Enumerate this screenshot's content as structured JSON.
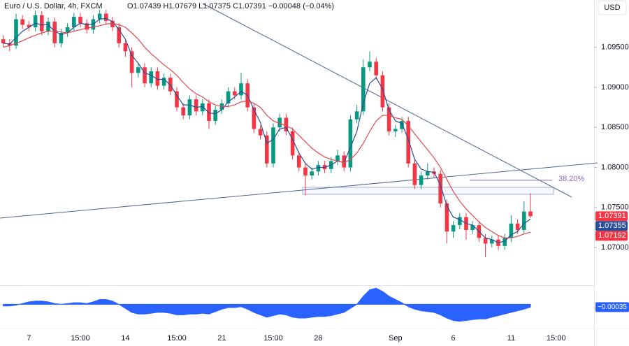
{
  "chart_data": {
    "type": "candlestick",
    "title": "Euro / U.S. Dollar, 4h, FXCM",
    "ohlc_header": "O1.07439 H1.07679 L1.07375 C1.07391 −0.00048 (−0.04%)",
    "currency": "USD",
    "categories": [
      null,
      null,
      null,
      null,
      "7",
      null,
      null,
      null,
      null,
      null,
      null,
      null,
      "15:00",
      null,
      null,
      null,
      null,
      null,
      null,
      "14",
      null,
      null,
      null,
      null,
      null,
      null,
      null,
      "15:00",
      null,
      null,
      null,
      null,
      null,
      null,
      "21",
      null,
      null,
      null,
      null,
      null,
      null,
      null,
      "15:00",
      null,
      null,
      null,
      null,
      null,
      null,
      "28",
      null,
      null,
      null,
      null,
      null,
      null,
      null,
      null,
      null,
      null,
      null,
      "Sep",
      null,
      null,
      null,
      null,
      null,
      null,
      null,
      null,
      "6",
      null,
      null,
      null,
      null,
      null,
      null,
      null,
      null,
      "11",
      null,
      null,
      null,
      null,
      null,
      null,
      "15:00",
      null,
      null,
      null,
      null,
      null
    ],
    "open": [
      1.096,
      1.0955,
      1.0952,
      1.0985,
      1.0978,
      1.0975,
      1.099,
      1.097,
      1.0982,
      1.0955,
      1.0968,
      1.0975,
      1.0988,
      1.098,
      1.0972,
      1.0985,
      1.0992,
      1.0983,
      1.0975,
      1.0955,
      1.0945,
      1.0918,
      1.0925,
      1.0905,
      1.092,
      1.0902,
      1.0912,
      1.0895,
      1.0875,
      1.0865,
      1.0885,
      1.087,
      1.088,
      1.0858,
      1.0872,
      1.088,
      1.0895,
      1.089,
      1.0905,
      1.0875,
      1.0848,
      1.084,
      1.0805,
      1.085,
      1.0862,
      1.0845,
      1.0815,
      1.08,
      1.079,
      1.0795,
      1.0803,
      1.0798,
      1.0808,
      1.0815,
      1.08,
      1.086,
      1.087,
      1.0925,
      1.0932,
      1.0915,
      1.0875,
      1.0845,
      1.0848,
      1.0858,
      1.0805,
      1.0778,
      1.079,
      1.0795,
      1.0792,
      1.0755,
      1.072,
      1.0728,
      1.0738,
      1.0722,
      1.0728,
      1.0712,
      1.0705,
      1.071,
      1.0702,
      1.0712,
      1.073,
      1.0722,
      1.0745,
      null,
      null,
      null,
      null,
      null,
      null,
      null,
      null,
      null
    ],
    "high": [
      1.0965,
      1.096,
      1.0992,
      1.099,
      1.0983,
      1.0996,
      1.0995,
      1.0987,
      1.0987,
      1.0973,
      1.098,
      1.0993,
      1.0993,
      1.0985,
      1.099,
      1.0997,
      1.0997,
      1.0988,
      1.098,
      1.096,
      1.095,
      1.093,
      1.093,
      1.0925,
      1.0925,
      1.0917,
      1.0917,
      1.09,
      1.088,
      1.089,
      1.089,
      1.0885,
      1.0885,
      1.0877,
      1.0885,
      1.09,
      1.09,
      1.0918,
      1.091,
      1.088,
      1.0853,
      1.0845,
      1.0855,
      1.0867,
      1.0867,
      1.085,
      1.082,
      1.0805,
      1.08,
      1.0808,
      1.0808,
      1.0813,
      1.0822,
      1.082,
      1.0865,
      1.0878,
      1.0935,
      1.0945,
      1.0937,
      1.092,
      1.088,
      1.0853,
      1.0863,
      1.0863,
      1.081,
      1.0795,
      1.0805,
      1.08,
      1.0797,
      1.076,
      1.0733,
      1.0743,
      1.0743,
      1.0733,
      1.0733,
      1.0717,
      1.0715,
      1.0715,
      1.0717,
      1.074,
      1.0735,
      1.0758,
      1.0768,
      null,
      null,
      null,
      null,
      null,
      null,
      null,
      null,
      null
    ],
    "low": [
      1.095,
      1.0945,
      1.0948,
      1.0973,
      1.097,
      1.097,
      1.0965,
      1.0965,
      1.095,
      1.095,
      1.0963,
      1.097,
      1.0975,
      1.0967,
      1.0967,
      1.098,
      1.0978,
      1.097,
      1.095,
      1.0938,
      1.09,
      1.0912,
      1.09,
      1.09,
      1.0897,
      1.0897,
      1.089,
      1.087,
      1.086,
      1.086,
      1.0865,
      1.0865,
      1.0848,
      1.0853,
      1.0867,
      1.0875,
      1.0885,
      1.0885,
      1.087,
      1.0843,
      1.0835,
      1.08,
      1.08,
      1.0845,
      1.084,
      1.081,
      1.0795,
      1.0765,
      1.0785,
      1.079,
      1.0793,
      1.0793,
      1.0803,
      1.0795,
      1.0795,
      1.0855,
      1.0865,
      1.092,
      1.091,
      1.087,
      1.084,
      1.0838,
      1.0843,
      1.08,
      1.0773,
      1.0773,
      1.0785,
      1.0787,
      1.075,
      1.0705,
      1.0712,
      1.0723,
      1.071,
      1.0717,
      1.0707,
      1.0688,
      1.07,
      1.0697,
      1.0697,
      1.0707,
      1.0717,
      1.0717,
      1.0737,
      null,
      null,
      null,
      null,
      null,
      null,
      null,
      null,
      null
    ],
    "close": [
      1.0955,
      1.0952,
      1.0985,
      1.0978,
      1.0975,
      1.099,
      1.097,
      1.0982,
      1.0955,
      1.0968,
      1.0975,
      1.0988,
      1.098,
      1.0972,
      1.0985,
      1.0992,
      1.0983,
      1.0975,
      1.0955,
      1.0945,
      1.0918,
      1.0925,
      1.0905,
      1.092,
      1.0902,
      1.0912,
      1.0895,
      1.0875,
      1.0865,
      1.0885,
      1.087,
      1.088,
      1.0858,
      1.0872,
      1.088,
      1.0895,
      1.089,
      1.0905,
      1.0875,
      1.0848,
      1.084,
      1.0805,
      1.085,
      1.0862,
      1.0845,
      1.0815,
      1.08,
      1.079,
      1.0795,
      1.0803,
      1.0798,
      1.0808,
      1.0815,
      1.08,
      1.086,
      1.087,
      1.0925,
      1.0932,
      1.0915,
      1.0875,
      1.0845,
      1.0848,
      1.0858,
      1.0805,
      1.0778,
      1.079,
      1.0795,
      1.0792,
      1.0755,
      1.072,
      1.0728,
      1.0738,
      1.0722,
      1.0728,
      1.0712,
      1.0705,
      1.071,
      1.0702,
      1.0712,
      1.073,
      1.0722,
      1.0745,
      1.07391,
      null,
      null,
      null,
      null,
      null,
      null,
      null,
      null,
      null
    ],
    "up_color": "#089981",
    "down_color": "#f23645",
    "series": [
      {
        "color": "#2a4e96",
        "values": [
          1.0955,
          1.0954,
          1.0962,
          1.097,
          1.0975,
          1.098,
          1.0978,
          1.0978,
          1.097,
          1.0966,
          1.0968,
          1.0975,
          1.098,
          1.0978,
          1.0979,
          1.0985,
          1.0986,
          1.0982,
          1.0972,
          1.096,
          1.094,
          1.093,
          1.0918,
          1.0915,
          1.091,
          1.091,
          1.0903,
          1.089,
          1.0878,
          1.0878,
          1.0875,
          1.0876,
          1.0868,
          1.0867,
          1.0872,
          1.0882,
          1.0888,
          1.0895,
          1.089,
          1.0872,
          1.0856,
          1.083,
          1.0835,
          1.0848,
          1.085,
          1.0835,
          1.0818,
          1.0805,
          1.0798,
          1.08,
          1.08,
          1.0803,
          1.0808,
          1.0806,
          1.0825,
          1.0845,
          1.088,
          1.0905,
          1.0912,
          1.0898,
          1.0872,
          1.0858,
          1.0855,
          1.0835,
          1.081,
          1.0798,
          1.0795,
          1.0794,
          1.0778,
          1.0752,
          1.0738,
          1.0735,
          1.073,
          1.0728,
          1.072,
          1.0712,
          1.071,
          1.0706,
          1.0708,
          1.0716,
          1.072,
          1.073,
          1.07355,
          null,
          null,
          null,
          null,
          null,
          null,
          null,
          null,
          null
        ]
      },
      {
        "color": "#e0484e",
        "values": [
          1.095,
          1.0952,
          1.0955,
          1.0958,
          1.0962,
          1.0965,
          1.0968,
          1.097,
          1.097,
          1.0969,
          1.0968,
          1.097,
          1.0972,
          1.0974,
          1.0975,
          1.0977,
          1.0979,
          1.098,
          1.0978,
          1.0975,
          1.0968,
          1.096,
          1.095,
          1.0942,
          1.0935,
          1.0928,
          1.0922,
          1.0915,
          1.0906,
          1.0898,
          1.0892,
          1.0888,
          1.0882,
          1.0878,
          1.0876,
          1.0876,
          1.0878,
          1.0882,
          1.0883,
          1.088,
          1.0875,
          1.0865,
          1.0858,
          1.0855,
          1.0852,
          1.0848,
          1.084,
          1.0832,
          1.0824,
          1.0818,
          1.0813,
          1.081,
          1.0808,
          1.0806,
          1.081,
          1.0818,
          1.083,
          1.0845,
          1.0858,
          1.0865,
          1.0865,
          1.0862,
          1.086,
          1.0852,
          1.0842,
          1.0832,
          1.0822,
          1.0812,
          1.08,
          1.0785,
          1.077,
          1.0758,
          1.0748,
          1.074,
          1.0732,
          1.0725,
          1.072,
          1.0715,
          1.0712,
          1.0712,
          1.0714,
          1.0717,
          1.07192,
          null,
          null,
          null,
          null,
          null,
          null,
          null,
          null,
          null
        ]
      }
    ],
    "ylim": [
      1.0653,
      1.1009
    ],
    "yticks": [
      {
        "value": 1.095,
        "label": "1.09500"
      },
      {
        "value": 1.09,
        "label": "1.09000"
      },
      {
        "value": 1.085,
        "label": "1.08500"
      },
      {
        "value": 1.08,
        "label": "1.08000"
      },
      {
        "value": 1.075,
        "label": "1.07500"
      },
      {
        "value": 1.07,
        "label": "1.07000"
      }
    ],
    "price_labels": [
      {
        "value": 1.07391,
        "label": "1.07391",
        "color": "#f23645"
      },
      {
        "value": 1.07355,
        "label": "1.07355",
        "color": "#2a4e96"
      },
      {
        "value": 1.07192,
        "label": "1.07192",
        "color": "#f23645"
      }
    ],
    "fib": {
      "value": 1.0784,
      "label": "38.20%",
      "color": "#8e6bbf"
    },
    "oscillator": {
      "type": "area",
      "color": "#2962ff",
      "ylim": [
        -0.003,
        0.0022
      ],
      "values": [
        -0.0002,
        -0.0002,
        -0.0001,
        0.0001,
        0.0003,
        0.0004,
        0.0004,
        0.0003,
        0.0001,
        0.0,
        0.0001,
        0.0002,
        0.0002,
        0.0001,
        0.0003,
        0.0006,
        0.0006,
        0.0004,
        0.0,
        -0.0005,
        -0.001,
        -0.0012,
        -0.0012,
        -0.0011,
        -0.001,
        -0.001,
        -0.0011,
        -0.0013,
        -0.0013,
        -0.0012,
        -0.0012,
        -0.0011,
        -0.0012,
        -0.0009,
        -0.0006,
        -0.0004,
        -0.0004,
        -0.0003,
        -0.0006,
        -0.001,
        -0.0013,
        -0.0016,
        -0.0014,
        -0.0012,
        -0.0013,
        -0.0016,
        -0.0017,
        -0.0017,
        -0.0016,
        -0.0015,
        -0.0015,
        -0.0014,
        -0.0012,
        -0.001,
        -0.0005,
        0.0,
        0.001,
        0.0018,
        0.002,
        0.0016,
        0.001,
        0.0006,
        0.0002,
        -0.0003,
        -0.0006,
        -0.0008,
        -0.0009,
        -0.001,
        -0.0013,
        -0.0017,
        -0.002,
        -0.0021,
        -0.002,
        -0.0019,
        -0.0018,
        -0.0018,
        -0.0016,
        -0.0014,
        -0.0012,
        -0.001,
        -0.0008,
        -0.0006,
        -0.00035,
        null,
        null,
        null,
        null,
        null,
        null,
        null,
        null,
        null
      ],
      "last": {
        "value": -0.00035,
        "label": "−0.00035"
      }
    }
  }
}
